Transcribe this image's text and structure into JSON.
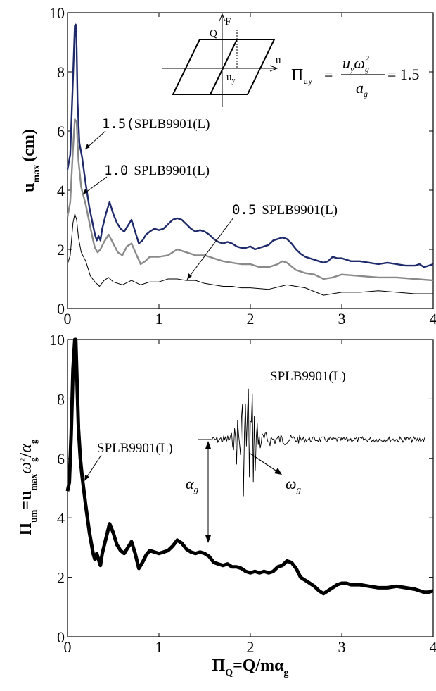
{
  "chart_data": [
    {
      "type": "line",
      "ylabel_main": "u",
      "ylabel_sub": "max",
      "ylabel_unit": "(cm)",
      "xlim": [
        0,
        4
      ],
      "ylim": [
        0,
        10
      ],
      "x_ticks": [
        "0",
        "1",
        "2",
        "3",
        "4"
      ],
      "y_ticks": [
        "0",
        "2",
        "4",
        "6",
        "8",
        "10"
      ],
      "annotations": {
        "label_15": {
          "num": "1.5",
          "paren": "(",
          "rec": "SPLB9901(L)"
        },
        "label_10": {
          "num": "1.0",
          "rec": "SPLB9901(L)"
        },
        "label_05": {
          "num": "0.5",
          "rec": "SPLB9901(L)"
        }
      },
      "formula": {
        "lhs": "Π",
        "lhs_sub": "uy",
        "num": "u",
        "num_sub": "y",
        "omega": "ω",
        "omega_sub": "g",
        "omega_sup": "2",
        "den": "a",
        "den_sub": "g",
        "rhs": "= 1.5"
      },
      "inset": {
        "q": "Q",
        "f": "F",
        "u": "u",
        "uy": "u",
        "uy_sub": "y"
      },
      "series": [
        {
          "name": "1.5",
          "color": "#1f2a6b",
          "x": [
            0.0,
            0.03,
            0.06,
            0.08,
            0.09,
            0.1,
            0.11,
            0.13,
            0.16,
            0.2,
            0.24,
            0.28,
            0.3,
            0.32,
            0.34,
            0.36,
            0.38,
            0.42,
            0.46,
            0.5,
            0.54,
            0.58,
            0.62,
            0.66,
            0.7,
            0.74,
            0.78,
            0.82,
            0.86,
            0.9,
            0.95,
            1.0,
            1.05,
            1.1,
            1.15,
            1.2,
            1.25,
            1.3,
            1.35,
            1.4,
            1.45,
            1.5,
            1.55,
            1.6,
            1.65,
            1.7,
            1.75,
            1.8,
            1.85,
            1.9,
            1.95,
            2.0,
            2.05,
            2.1,
            2.15,
            2.2,
            2.25,
            2.3,
            2.35,
            2.4,
            2.45,
            2.5,
            2.55,
            2.6,
            2.65,
            2.7,
            2.75,
            2.8,
            2.85,
            2.9,
            2.95,
            3.0,
            3.05,
            3.1,
            3.2,
            3.3,
            3.4,
            3.5,
            3.6,
            3.7,
            3.8,
            3.85,
            3.9,
            3.95,
            4.0
          ],
          "y": [
            4.7,
            5.2,
            7.8,
            9.55,
            9.6,
            8.8,
            7.0,
            5.6,
            5.1,
            4.2,
            3.4,
            2.8,
            2.5,
            2.3,
            2.45,
            2.3,
            2.7,
            3.2,
            3.6,
            3.2,
            2.9,
            2.7,
            2.6,
            2.8,
            3.0,
            2.6,
            2.2,
            2.3,
            2.5,
            2.6,
            2.7,
            2.65,
            2.7,
            2.85,
            3.0,
            3.05,
            3.0,
            2.85,
            2.7,
            2.6,
            2.65,
            2.6,
            2.5,
            2.35,
            2.25,
            2.2,
            2.25,
            2.2,
            2.1,
            2.05,
            2.05,
            2.1,
            2.0,
            2.05,
            2.1,
            2.15,
            2.3,
            2.35,
            2.4,
            2.35,
            2.2,
            2.0,
            1.85,
            1.75,
            1.7,
            1.65,
            1.6,
            1.55,
            1.6,
            1.75,
            1.7,
            1.7,
            1.65,
            1.6,
            1.6,
            1.55,
            1.5,
            1.55,
            1.5,
            1.45,
            1.45,
            1.5,
            1.4,
            1.45,
            1.5
          ]
        },
        {
          "name": "1.0",
          "color": "#8a8a8a",
          "x": [
            0.0,
            0.03,
            0.06,
            0.08,
            0.1,
            0.12,
            0.15,
            0.2,
            0.24,
            0.28,
            0.3,
            0.33,
            0.36,
            0.4,
            0.45,
            0.5,
            0.55,
            0.6,
            0.65,
            0.7,
            0.75,
            0.8,
            0.85,
            0.9,
            1.0,
            1.1,
            1.2,
            1.3,
            1.4,
            1.5,
            1.6,
            1.7,
            1.8,
            1.9,
            2.0,
            2.1,
            2.2,
            2.3,
            2.35,
            2.4,
            2.5,
            2.6,
            2.7,
            2.8,
            2.9,
            3.0,
            3.2,
            3.4,
            3.6,
            3.8,
            4.0
          ],
          "y": [
            3.1,
            3.6,
            5.4,
            6.4,
            6.3,
            5.0,
            4.1,
            3.5,
            2.9,
            2.3,
            2.05,
            1.9,
            2.0,
            2.25,
            2.5,
            2.2,
            1.9,
            1.8,
            2.1,
            2.2,
            1.85,
            1.5,
            1.6,
            1.75,
            1.75,
            1.8,
            2.0,
            1.9,
            1.8,
            1.8,
            1.7,
            1.6,
            1.55,
            1.5,
            1.5,
            1.4,
            1.4,
            1.5,
            1.6,
            1.55,
            1.3,
            1.2,
            1.15,
            1.0,
            1.05,
            1.15,
            1.1,
            1.05,
            1.05,
            1.0,
            0.95
          ]
        },
        {
          "name": "0.5",
          "color": "#000000",
          "x": [
            0.0,
            0.03,
            0.06,
            0.08,
            0.1,
            0.12,
            0.15,
            0.2,
            0.25,
            0.3,
            0.35,
            0.4,
            0.45,
            0.5,
            0.6,
            0.7,
            0.8,
            0.9,
            1.0,
            1.1,
            1.2,
            1.3,
            1.4,
            1.5,
            1.6,
            1.7,
            1.8,
            1.9,
            2.0,
            2.2,
            2.4,
            2.6,
            2.8,
            3.0,
            3.2,
            3.4,
            3.6,
            3.8,
            4.0
          ],
          "y": [
            1.5,
            1.8,
            2.9,
            3.2,
            3.0,
            2.4,
            1.9,
            1.6,
            1.1,
            0.9,
            0.75,
            0.95,
            1.05,
            0.9,
            0.8,
            0.95,
            0.8,
            0.9,
            0.9,
            1.0,
            1.0,
            0.95,
            0.95,
            0.85,
            0.8,
            0.75,
            0.75,
            0.7,
            0.7,
            0.65,
            0.8,
            0.7,
            0.45,
            0.55,
            0.55,
            0.6,
            0.55,
            0.5,
            0.5
          ]
        }
      ]
    },
    {
      "type": "line",
      "ylabel_main": "Π",
      "ylabel_sub": "um",
      "ylabel_rest": "=u",
      "ylabel_max": "max",
      "ylabel_omega": "ω",
      "ylabel_omega_sup": "2",
      "ylabel_omega_sub": "g",
      "ylabel_slash": "/",
      "ylabel_alpha": "α",
      "ylabel_alpha_sub": "g",
      "xlabel_main": "Π",
      "xlabel_sub": "Q",
      "xlabel_rest": "=Q/mα",
      "xlabel_rest_sub": "g",
      "xlim": [
        0,
        4
      ],
      "ylim": [
        0,
        10
      ],
      "x_ticks": [
        "0",
        "1",
        "2",
        "3",
        "4"
      ],
      "y_ticks": [
        "0",
        "2",
        "4",
        "6",
        "8",
        "10"
      ],
      "annotations": {
        "curve_label": "SPLB9901(L)",
        "record_label": "SPLB9901(L)",
        "alpha_main": "α",
        "alpha_sub": "g",
        "omega_main": "ω",
        "omega_sub": "g"
      },
      "series": [
        {
          "name": "SPLB9901(L)",
          "color": "#000000",
          "x": [
            0.0,
            0.02,
            0.04,
            0.06,
            0.08,
            0.09,
            0.1,
            0.11,
            0.12,
            0.14,
            0.16,
            0.18,
            0.2,
            0.24,
            0.28,
            0.3,
            0.32,
            0.34,
            0.36,
            0.38,
            0.42,
            0.46,
            0.5,
            0.54,
            0.58,
            0.62,
            0.66,
            0.7,
            0.74,
            0.78,
            0.82,
            0.86,
            0.9,
            0.95,
            1.0,
            1.05,
            1.1,
            1.15,
            1.2,
            1.25,
            1.3,
            1.35,
            1.4,
            1.45,
            1.5,
            1.55,
            1.6,
            1.65,
            1.7,
            1.75,
            1.8,
            1.85,
            1.9,
            1.95,
            2.0,
            2.05,
            2.1,
            2.15,
            2.2,
            2.25,
            2.3,
            2.35,
            2.4,
            2.45,
            2.5,
            2.55,
            2.6,
            2.65,
            2.7,
            2.75,
            2.8,
            2.85,
            2.9,
            2.95,
            3.0,
            3.05,
            3.1,
            3.2,
            3.3,
            3.4,
            3.5,
            3.6,
            3.7,
            3.8,
            3.85,
            3.9,
            3.95,
            4.0
          ],
          "y": [
            4.9,
            5.2,
            6.8,
            9.0,
            10.0,
            10.0,
            9.0,
            8.0,
            7.0,
            6.0,
            5.4,
            4.9,
            4.4,
            3.5,
            2.8,
            2.6,
            2.8,
            2.6,
            2.4,
            2.8,
            3.3,
            3.8,
            3.5,
            3.1,
            2.9,
            2.8,
            3.0,
            3.2,
            2.8,
            2.3,
            2.5,
            2.75,
            2.9,
            2.85,
            2.8,
            2.85,
            2.9,
            3.05,
            3.25,
            3.15,
            2.95,
            2.85,
            2.8,
            2.85,
            2.8,
            2.7,
            2.5,
            2.45,
            2.4,
            2.45,
            2.35,
            2.35,
            2.3,
            2.2,
            2.15,
            2.2,
            2.15,
            2.2,
            2.15,
            2.2,
            2.35,
            2.4,
            2.55,
            2.5,
            2.3,
            2.0,
            1.9,
            1.8,
            1.7,
            1.55,
            1.45,
            1.55,
            1.65,
            1.75,
            1.8,
            1.8,
            1.75,
            1.75,
            1.7,
            1.65,
            1.65,
            1.7,
            1.65,
            1.6,
            1.55,
            1.5,
            1.5,
            1.55
          ]
        }
      ]
    }
  ]
}
